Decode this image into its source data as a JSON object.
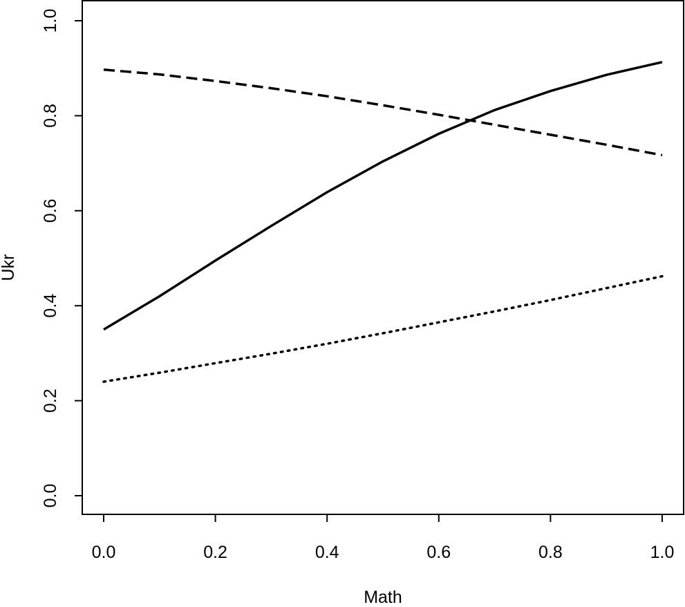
{
  "chart_data": {
    "type": "line",
    "title": "",
    "xlabel": "Math",
    "ylabel": "Ukr",
    "xlim": [
      -0.04,
      1.04
    ],
    "ylim": [
      -0.04,
      1.04
    ],
    "x_ticks": [
      0.0,
      0.2,
      0.4,
      0.6,
      0.8,
      1.0
    ],
    "x_tick_labels": [
      "0.0",
      "0.2",
      "0.4",
      "0.6",
      "0.8",
      "1.0"
    ],
    "y_ticks": [
      0.0,
      0.2,
      0.4,
      0.6,
      0.8,
      1.0
    ],
    "y_tick_labels": [
      "0.0",
      "0.2",
      "0.4",
      "0.6",
      "0.8",
      "1.0"
    ],
    "grid": false,
    "legend": "none",
    "x": [
      0.0,
      0.1,
      0.2,
      0.3,
      0.4,
      0.5,
      0.6,
      0.7,
      0.8,
      0.9,
      1.0
    ],
    "series": [
      {
        "line_style": "solid",
        "color": "#000000",
        "values": [
          0.35,
          0.42,
          0.495,
          0.568,
          0.639,
          0.704,
          0.762,
          0.812,
          0.852,
          0.886,
          0.913
        ]
      },
      {
        "line_style": "dashed",
        "color": "#000000",
        "values": [
          0.897,
          0.887,
          0.873,
          0.858,
          0.841,
          0.822,
          0.802,
          0.781,
          0.76,
          0.739,
          0.717
        ]
      },
      {
        "line_style": "dotted",
        "color": "#000000",
        "values": [
          0.24,
          0.259,
          0.279,
          0.299,
          0.32,
          0.342,
          0.365,
          0.388,
          0.412,
          0.437,
          0.462
        ]
      }
    ]
  }
}
